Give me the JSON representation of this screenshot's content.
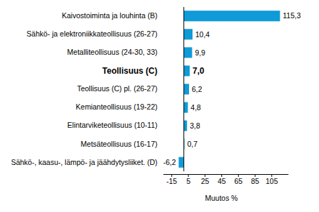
{
  "chart_data": {
    "type": "bar",
    "orientation": "horizontal",
    "x_label": "Muutos %",
    "categories": [
      "Kaivostoiminta  ja louhinta (B)",
      "Sähkö- ja elektroniikkateollisuus (26-27)",
      "Metalliteollisuus (24-30, 33)",
      "Teollisuus (C)",
      "Teollisuus (C) pl. (26-27)",
      "Kemianteollisuus (19-22)",
      "Elintarviketeollisuus (10-11)",
      "Metsäteollisuus (16-17)",
      "Sähkö-, kaasu-, lämpö- ja jäähdytysliiket. (D)"
    ],
    "values": [
      115.3,
      10.4,
      9.9,
      7.0,
      6.2,
      4.8,
      3.8,
      0.7,
      -6.2
    ],
    "value_labels": [
      "115,3",
      "10,4",
      "9,9",
      "7,0",
      "6,2",
      "4,8",
      "3,8",
      "0,7",
      "-6,2"
    ],
    "data_labels": true,
    "color": "#0f9ad8",
    "xlim": [
      -25,
      125
    ],
    "xticks": [
      -15,
      5,
      25,
      45,
      65,
      85,
      105
    ],
    "grid": false
  }
}
